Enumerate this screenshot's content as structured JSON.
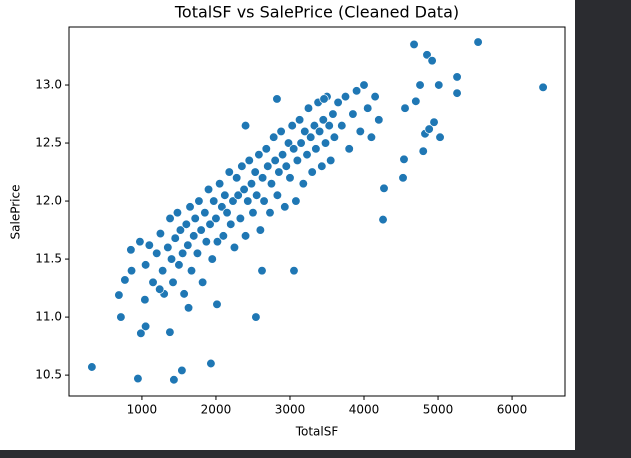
{
  "chart_data": {
    "type": "scatter",
    "title": "TotalSF vs SalePrice (Cleaned Data)",
    "x_label": "TotalSF",
    "y_label": "SalePrice",
    "color": "#1f77b4",
    "x": [
      1050,
      1100,
      1150,
      1200,
      1250,
      1280,
      1300,
      1350,
      1380,
      1400,
      1420,
      1450,
      1480,
      1500,
      1520,
      1550,
      1570,
      1600,
      1620,
      1650,
      1670,
      1700,
      1720,
      1750,
      1770,
      1800,
      1820,
      1850,
      1870,
      1900,
      1920,
      1950,
      1970,
      2000,
      2020,
      2050,
      2080,
      2100,
      2120,
      2150,
      2180,
      2200,
      2230,
      2250,
      2280,
      2300,
      2330,
      2350,
      2380,
      2400,
      2430,
      2450,
      2480,
      2500,
      2530,
      2550,
      2580,
      2600,
      2630,
      2650,
      2680,
      2700,
      2730,
      2750,
      2780,
      2800,
      2830,
      2850,
      2880,
      2900,
      2930,
      2950,
      2980,
      3000,
      3030,
      3050,
      3080,
      3100,
      3130,
      3150,
      3180,
      3200,
      3230,
      3250,
      3280,
      3300,
      3330,
      3350,
      3380,
      3400,
      3430,
      3450,
      3480,
      3500,
      3530,
      3550,
      3580,
      3600,
      3650,
      3700,
      3750,
      3800,
      3850,
      3900,
      3950,
      4000,
      4050,
      4100,
      4150,
      4200,
      324,
      6419,
      5541,
      4676,
      5257,
      5257,
      4851,
      4920,
      5010,
      4700,
      4824,
      5027,
      4946,
      4880,
      4554,
      4757,
      4540,
      4527,
      4270,
      4257,
      4800,
      946,
      1432,
      1540,
      1932,
      1378,
      986,
      1050,
      716,
      689,
      2540,
      2014,
      1040,
      1240,
      1630,
      851,
      973,
      770,
      860,
      2824,
      3054,
      2622,
      3460,
      2400
    ],
    "values": [
      11.45,
      11.62,
      11.3,
      11.55,
      11.72,
      11.4,
      11.2,
      11.6,
      11.85,
      11.5,
      11.3,
      11.68,
      11.9,
      11.45,
      11.75,
      11.55,
      11.2,
      11.8,
      11.62,
      11.95,
      11.4,
      11.7,
      11.85,
      11.55,
      12.0,
      11.75,
      11.3,
      11.9,
      11.65,
      12.1,
      11.8,
      11.5,
      12.0,
      11.85,
      11.65,
      12.15,
      11.95,
      11.7,
      12.05,
      11.9,
      12.25,
      11.8,
      12.0,
      11.6,
      12.2,
      12.05,
      11.85,
      12.3,
      12.1,
      11.7,
      12.0,
      12.35,
      12.15,
      11.9,
      12.25,
      12.05,
      12.4,
      11.75,
      12.2,
      12.0,
      12.45,
      12.3,
      11.9,
      12.15,
      12.55,
      12.35,
      12.05,
      12.25,
      12.6,
      12.4,
      11.95,
      12.3,
      12.5,
      12.2,
      12.65,
      12.45,
      12.0,
      12.35,
      12.7,
      12.5,
      12.15,
      12.6,
      12.4,
      12.8,
      12.55,
      12.25,
      12.65,
      12.45,
      12.85,
      12.6,
      12.3,
      12.7,
      12.5,
      12.9,
      12.65,
      12.35,
      12.75,
      12.55,
      12.85,
      12.65,
      12.9,
      12.45,
      12.75,
      12.95,
      12.6,
      13.0,
      12.8,
      12.55,
      12.9,
      12.7,
      10.57,
      12.98,
      13.37,
      13.35,
      13.07,
      12.93,
      13.26,
      13.21,
      13.0,
      12.86,
      12.58,
      12.55,
      12.68,
      12.62,
      12.8,
      13.0,
      12.36,
      12.2,
      12.11,
      11.84,
      12.43,
      10.47,
      10.46,
      10.54,
      10.6,
      10.87,
      10.86,
      10.92,
      11.0,
      11.19,
      11.0,
      11.11,
      11.15,
      11.24,
      11.08,
      11.58,
      11.65,
      11.32,
      11.4,
      12.88,
      11.4,
      11.4,
      12.88,
      12.65
    ],
    "xlim": [
      15,
      6715
    ],
    "xticks": [
      1000,
      2000,
      3000,
      4000,
      5000,
      6000
    ],
    "ylim": [
      10.32,
      13.5
    ],
    "yticks": [
      10.5,
      {
        "value": 11,
        "label": "11.0"
      },
      11.5,
      {
        "value": 12,
        "label": "12.0"
      },
      12.5,
      {
        "value": 13,
        "label": "13.0"
      }
    ]
  }
}
